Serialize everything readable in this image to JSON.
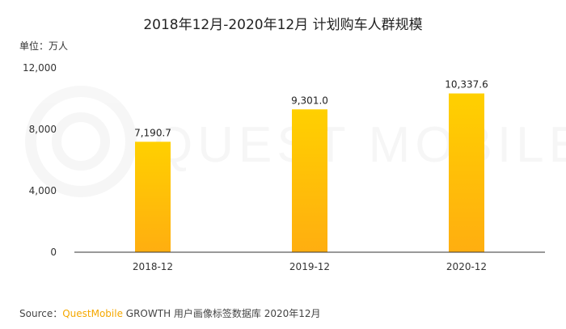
{
  "chart_data": {
    "type": "bar",
    "title": "2018年12月-2020年12月 计划购车人群规模",
    "unit_label": "单位：万人",
    "categories": [
      "2018-12",
      "2019-12",
      "2020-12"
    ],
    "values": [
      7190.7,
      9301.0,
      10337.6
    ],
    "value_labels": [
      "7,190.7",
      "9,301.0",
      "10,337.6"
    ],
    "yticks": [
      0,
      4000,
      8000,
      12000
    ],
    "ytick_labels": [
      "0",
      "4,000",
      "8,000",
      "12,000"
    ],
    "ylim": [
      0,
      12000
    ],
    "grid": false,
    "bar_color_top": "#ffd000",
    "bar_color_bottom": "#ffae10",
    "watermark": "QUEST MOBILE"
  },
  "footer": {
    "prefix": "Source：",
    "brand": "QuestMobile",
    "growth": " GROWTH",
    "rest": " 用户画像标签数据库 2020年12月"
  },
  "colors": {
    "brand": "#f5a800",
    "axis": "#333333"
  }
}
